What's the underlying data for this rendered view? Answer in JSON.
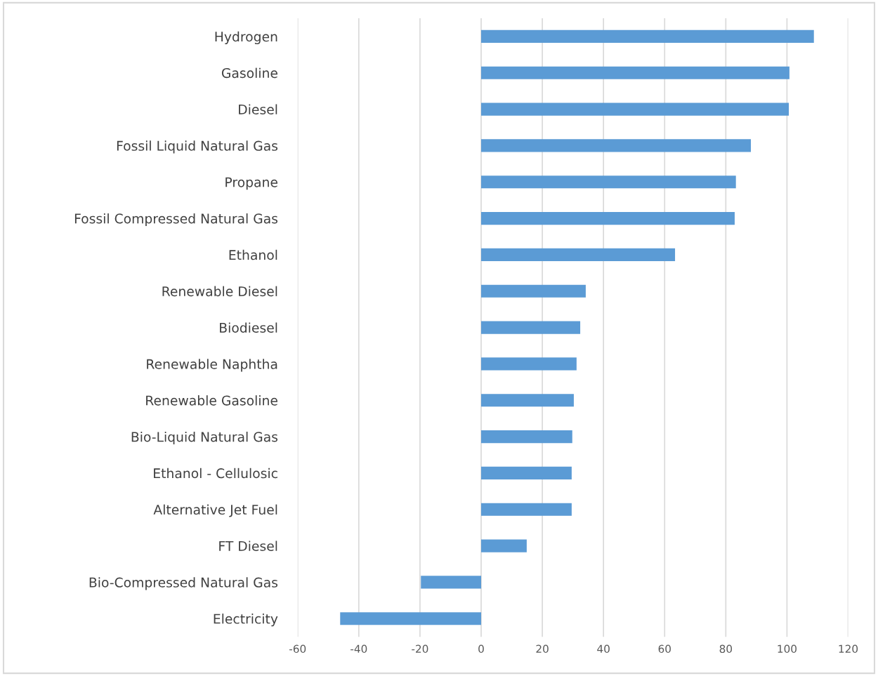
{
  "chart_data": {
    "type": "bar",
    "orientation": "horizontal",
    "categories": [
      "Hydrogen",
      "Gasoline",
      "Diesel",
      "Fossil Liquid Natural Gas",
      "Propane",
      "Fossil Compressed Natural Gas",
      "Ethanol",
      "Renewable Diesel",
      "Biodiesel",
      "Renewable Naphtha",
      "Renewable Gasoline",
      "Bio-Liquid Natural Gas",
      "Ethanol - Cellulosic",
      "Alternative Jet Fuel",
      "FT Diesel",
      "Bio-Compressed Natural Gas",
      "Electricity"
    ],
    "values": [
      108.8,
      100.8,
      100.6,
      88.2,
      83.3,
      82.9,
      63.4,
      34.2,
      32.4,
      31.2,
      30.3,
      29.8,
      29.6,
      29.6,
      14.9,
      -19.7,
      -46.1
    ],
    "color": "#5b9bd5",
    "xlim": [
      -60,
      120
    ],
    "xticks": [
      -60,
      -40,
      -20,
      0,
      20,
      40,
      60,
      80,
      100,
      120
    ],
    "grid": "x",
    "legend": false
  }
}
